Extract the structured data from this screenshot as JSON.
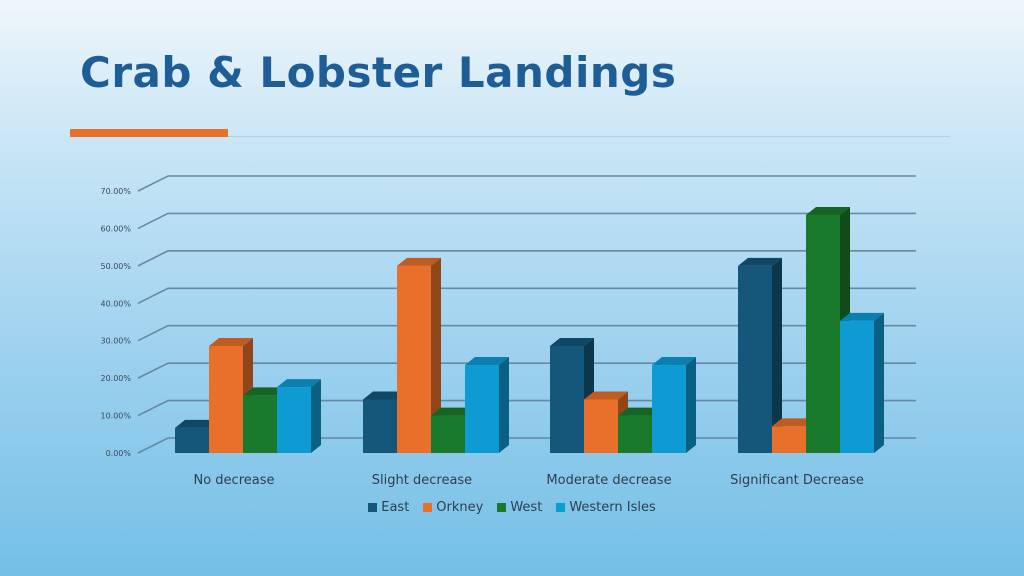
{
  "page": {
    "title": "Crab & Lobster Landings"
  },
  "chart_data": {
    "type": "bar",
    "title": "",
    "xlabel": "",
    "ylabel": "",
    "categories": [
      "No decrease",
      "Slight decrease",
      "Moderate decrease",
      "Significant Decrease"
    ],
    "y_ticks": [
      "0.00%",
      "10.00%",
      "20.00%",
      "30.00%",
      "40.00%",
      "50.00%",
      "60.00%",
      "70.00%"
    ],
    "ylim": [
      0,
      70
    ],
    "grid": true,
    "legend_position": "bottom",
    "series": [
      {
        "name": "East",
        "color": "#14577a",
        "values": [
          6.7,
          14.3,
          28.6,
          50
        ]
      },
      {
        "name": "Orkney",
        "color": "#e8702a",
        "values": [
          28.6,
          50,
          14.3,
          7.1
        ]
      },
      {
        "name": "West",
        "color": "#1a7a2c",
        "values": [
          15.4,
          10,
          10,
          63.6
        ]
      },
      {
        "name": "Western Isles",
        "color": "#0e9bd4",
        "values": [
          17.6,
          23.5,
          23.5,
          35.3
        ]
      }
    ]
  }
}
